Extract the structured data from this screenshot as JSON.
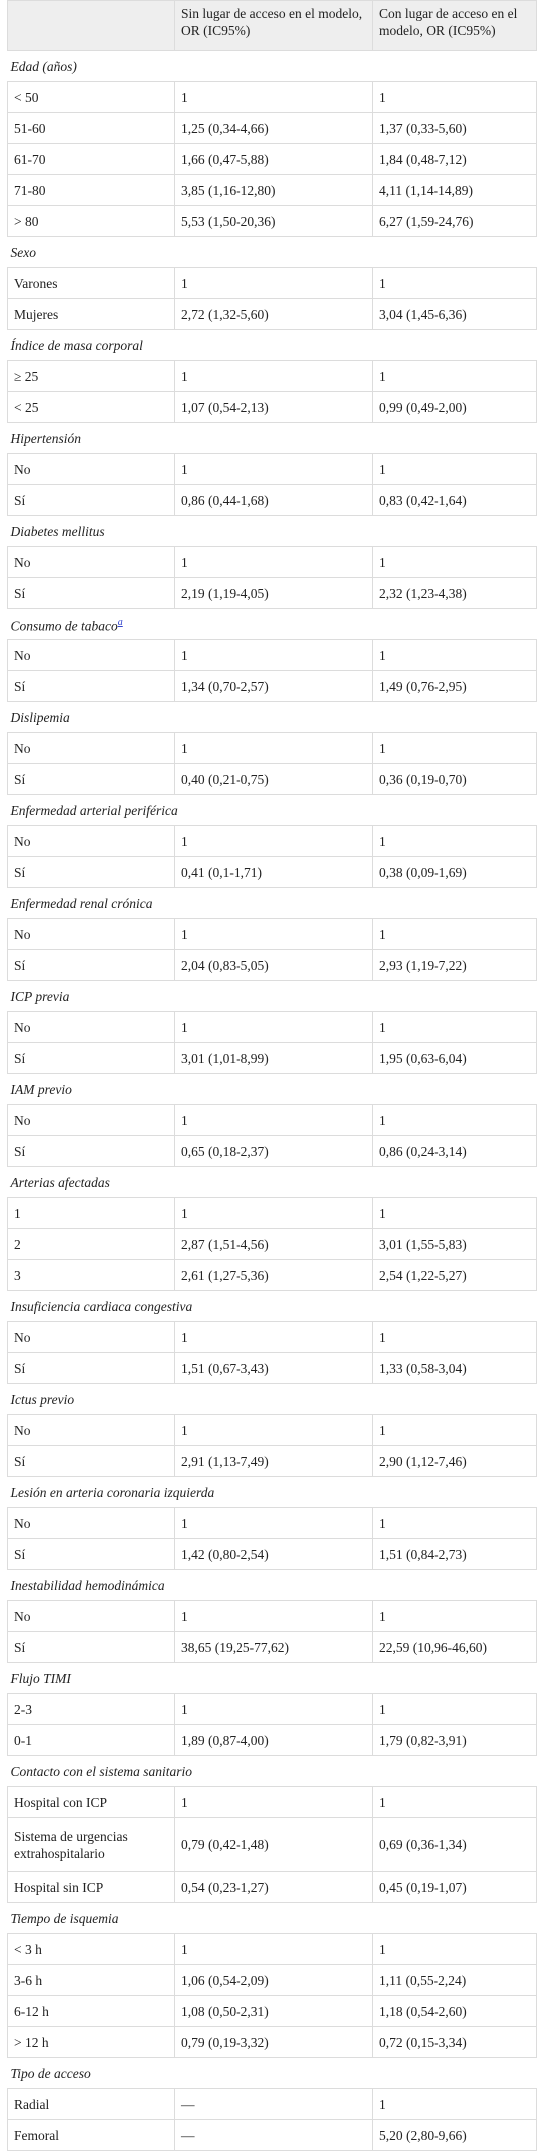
{
  "header": {
    "col1": "Sin lugar de acceso en el modelo, OR (IC95%)",
    "col2": "Con lugar de acceso en el modelo, OR (IC95%)"
  },
  "sections": [
    {
      "title": "Edad (años)",
      "rows": [
        [
          "< 50",
          "1",
          "1"
        ],
        [
          "51-60",
          "1,25 (0,34-4,66)",
          "1,37 (0,33-5,60)"
        ],
        [
          "61-70",
          "1,66 (0,47-5,88)",
          "1,84 (0,48-7,12)"
        ],
        [
          "71-80",
          "3,85 (1,16-12,80)",
          "4,11 (1,14-14,89)"
        ],
        [
          "> 80",
          "5,53 (1,50-20,36)",
          "6,27 (1,59-24,76)"
        ]
      ]
    },
    {
      "title": "Sexo",
      "rows": [
        [
          "Varones",
          "1",
          "1"
        ],
        [
          "Mujeres",
          "2,72 (1,32-5,60)",
          "3,04 (1,45-6,36)"
        ]
      ]
    },
    {
      "title": "Índice de masa corporal",
      "rows": [
        [
          "≥ 25",
          "1",
          "1"
        ],
        [
          "< 25",
          "1,07 (0,54-2,13)",
          "0,99 (0,49-2,00)"
        ]
      ]
    },
    {
      "title": "Hipertensión",
      "rows": [
        [
          "No",
          "1",
          "1"
        ],
        [
          "Sí",
          "0,86 (0,44-1,68)",
          "0,83 (0,42-1,64)"
        ]
      ]
    },
    {
      "title": "Diabetes mellitus",
      "rows": [
        [
          "No",
          "1",
          "1"
        ],
        [
          "Sí",
          "2,19 (1,19-4,05)",
          "2,32 (1,23-4,38)"
        ]
      ]
    },
    {
      "title": "Consumo de tabaco",
      "note": "a",
      "rows": [
        [
          "No",
          "1",
          "1"
        ],
        [
          "Sí",
          "1,34 (0,70-2,57)",
          "1,49 (0,76-2,95)"
        ]
      ]
    },
    {
      "title": "Dislipemia",
      "rows": [
        [
          "No",
          "1",
          "1"
        ],
        [
          "Sí",
          "0,40 (0,21-0,75)",
          "0,36 (0,19-0,70)"
        ]
      ]
    },
    {
      "title": "Enfermedad arterial periférica",
      "rows": [
        [
          "No",
          "1",
          "1"
        ],
        [
          "Sí",
          "0,41 (0,1-1,71)",
          "0,38 (0,09-1,69)"
        ]
      ]
    },
    {
      "title": "Enfermedad renal crónica",
      "rows": [
        [
          "No",
          "1",
          "1"
        ],
        [
          "Sí",
          "2,04 (0,83-5,05)",
          "2,93 (1,19-7,22)"
        ]
      ]
    },
    {
      "title": "ICP previa",
      "rows": [
        [
          "No",
          "1",
          "1"
        ],
        [
          "Sí",
          "3,01 (1,01-8,99)",
          "1,95 (0,63-6,04)"
        ]
      ]
    },
    {
      "title": "IAM previo",
      "rows": [
        [
          "No",
          "1",
          "1"
        ],
        [
          "Sí",
          "0,65 (0,18-2,37)",
          "0,86 (0,24-3,14)"
        ]
      ]
    },
    {
      "title": "Arterias afectadas",
      "rows": [
        [
          "1",
          "1",
          "1"
        ],
        [
          "2",
          "2,87 (1,51-4,56)",
          "3,01 (1,55-5,83)"
        ],
        [
          "3",
          "2,61 (1,27-5,36)",
          "2,54 (1,22-5,27)"
        ]
      ]
    },
    {
      "title": "Insuficiencia cardiaca congestiva",
      "rows": [
        [
          "No",
          "1",
          "1"
        ],
        [
          "Sí",
          "1,51 (0,67-3,43)",
          "1,33 (0,58-3,04)"
        ]
      ]
    },
    {
      "title": "Ictus previo",
      "rows": [
        [
          "No",
          "1",
          "1"
        ],
        [
          "Sí",
          "2,91 (1,13-7,49)",
          "2,90 (1,12-7,46)"
        ]
      ]
    },
    {
      "title": "Lesión en arteria coronaria izquierda",
      "rows": [
        [
          "No",
          "1",
          "1"
        ],
        [
          "Sí",
          "1,42 (0,80-2,54)",
          "1,51 (0,84-2,73)"
        ]
      ]
    },
    {
      "title": "Inestabilidad hemodinámica",
      "rows": [
        [
          "No",
          "1",
          "1"
        ],
        [
          "Sí",
          "38,65 (19,25-77,62)",
          "22,59 (10,96-46,60)"
        ]
      ]
    },
    {
      "title": "Flujo TIMI",
      "rows": [
        [
          "2-3",
          "1",
          "1"
        ],
        [
          "0-1",
          "1,89 (0,87-4,00)",
          "1,79 (0,82-3,91)"
        ]
      ]
    },
    {
      "title": "Contacto con el sistema sanitario",
      "rows": [
        [
          "Hospital con ICP",
          "1",
          "1"
        ],
        [
          "Sistema de urgencias extrahospitalario",
          "0,79 (0,42-1,48)",
          "0,69 (0,36-1,34)"
        ],
        [
          "Hospital sin ICP",
          "0,54 (0,23-1,27)",
          "0,45 (0,19-1,07)"
        ]
      ]
    },
    {
      "title": "Tiempo de isquemia",
      "rows": [
        [
          "< 3 h",
          "1",
          "1"
        ],
        [
          "3-6 h",
          "1,06 (0,54-2,09)",
          "1,11 (0,55-2,24)"
        ],
        [
          "6-12 h",
          "1,08 (0,50-2,31)",
          "1,18 (0,54-2,60)"
        ],
        [
          "> 12 h",
          "0,79 (0,19-3,32)",
          "0,72 (0,15-3,34)"
        ]
      ]
    },
    {
      "title": "Tipo de acceso",
      "rows": [
        [
          "Radial",
          "—",
          "1"
        ],
        [
          "Femoral",
          "—",
          "5,20 (2,80-9,66)"
        ]
      ]
    }
  ]
}
